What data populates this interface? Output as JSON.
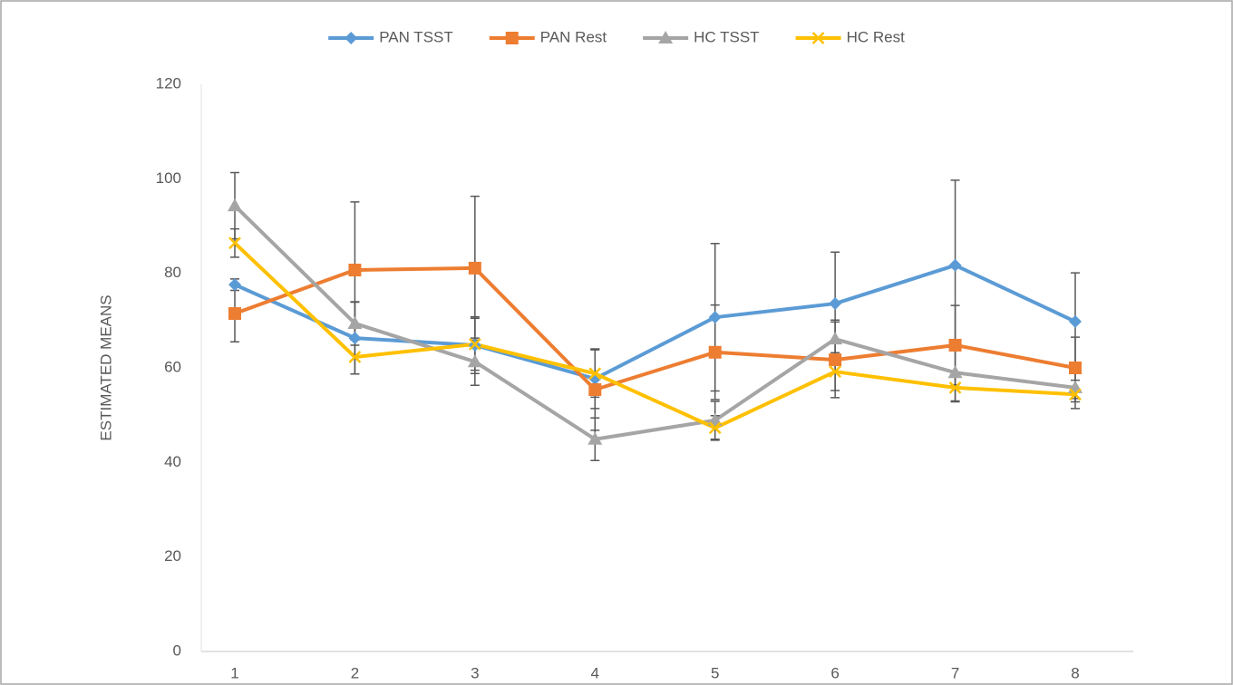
{
  "chart_data": {
    "type": "line",
    "y_label": "ESTIMATED MEANS",
    "categories": [
      "1",
      "2",
      "3",
      "4",
      "5",
      "6",
      "7",
      "8"
    ],
    "ylim": [
      0,
      120
    ],
    "yticks": [
      0,
      20,
      40,
      60,
      80,
      100,
      120
    ],
    "grid": false,
    "legend": "top",
    "series": [
      {
        "name": "PAN TSST",
        "color": "#5b9bd5",
        "marker": "diamond",
        "values": [
          77.6,
          66.3,
          64.8,
          57.7,
          70.7,
          73.6,
          81.7,
          69.8
        ],
        "errors": [
          1.2,
          7.6,
          6.0,
          6.3,
          15.6,
          10.9,
          18.0,
          10.3
        ]
      },
      {
        "name": "PAN Rest",
        "color": "#ed7d31",
        "marker": "square",
        "values": [
          71.5,
          80.7,
          81.1,
          55.4,
          63.3,
          61.7,
          64.8,
          60.0
        ],
        "errors": [
          6.0,
          14.4,
          15.2,
          8.6,
          10.0,
          8.0,
          8.4,
          6.5
        ]
      },
      {
        "name": "HC TSST",
        "color": "#a5a5a5",
        "marker": "triangle",
        "values": [
          94.3,
          69.4,
          61.3,
          44.9,
          48.9,
          66.1,
          59.0,
          55.8
        ],
        "errors": [
          7.0,
          4.6,
          5.0,
          4.5,
          4.0,
          4.0,
          6.0,
          3.0
        ]
      },
      {
        "name": "HC Rest",
        "color": "#ffc000",
        "marker": "x",
        "values": [
          86.4,
          62.3,
          65.0,
          58.8,
          47.3,
          59.2,
          55.8,
          54.4
        ],
        "errors": [
          3.0,
          3.6,
          5.5,
          5.0,
          2.6,
          4.0,
          3.0,
          3.0
        ]
      }
    ]
  }
}
